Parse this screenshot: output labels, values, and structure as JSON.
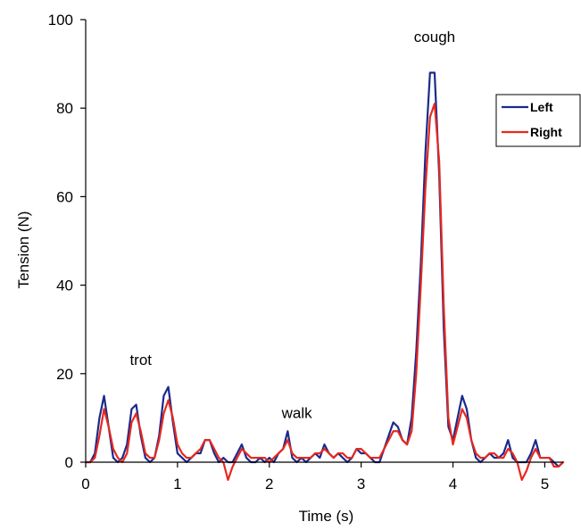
{
  "chart_data": {
    "type": "line",
    "title": "",
    "xlabel": "Time (s)",
    "ylabel": "Tension (N)",
    "xlim": [
      0,
      5.2
    ],
    "ylim": [
      0,
      100
    ],
    "x_ticks": [
      0,
      1,
      2,
      3,
      4,
      5
    ],
    "y_ticks": [
      0,
      20,
      40,
      60,
      80,
      100
    ],
    "grid": false,
    "legend": {
      "placement": "top-right",
      "entries": [
        "Left",
        "Right"
      ]
    },
    "annotations": [
      {
        "text": "trot",
        "x": 0.6,
        "y": 22
      },
      {
        "text": "walk",
        "x": 2.3,
        "y": 10
      },
      {
        "text": "cough",
        "x": 3.8,
        "y": 95
      }
    ],
    "series": [
      {
        "name": "Left",
        "color": "#1a2a8c",
        "x": [
          0,
          0.05,
          0.1,
          0.15,
          0.2,
          0.25,
          0.3,
          0.35,
          0.4,
          0.45,
          0.5,
          0.55,
          0.6,
          0.65,
          0.7,
          0.75,
          0.8,
          0.85,
          0.9,
          0.95,
          1.0,
          1.05,
          1.1,
          1.15,
          1.2,
          1.25,
          1.3,
          1.35,
          1.4,
          1.45,
          1.5,
          1.55,
          1.6,
          1.65,
          1.7,
          1.75,
          1.8,
          1.85,
          1.9,
          1.95,
          2.0,
          2.05,
          2.1,
          2.15,
          2.2,
          2.25,
          2.3,
          2.35,
          2.4,
          2.45,
          2.5,
          2.55,
          2.6,
          2.65,
          2.7,
          2.75,
          2.8,
          2.85,
          2.9,
          2.95,
          3.0,
          3.05,
          3.1,
          3.15,
          3.2,
          3.25,
          3.3,
          3.35,
          3.4,
          3.45,
          3.5,
          3.55,
          3.6,
          3.65,
          3.7,
          3.75,
          3.8,
          3.85,
          3.9,
          3.95,
          4.0,
          4.05,
          4.1,
          4.15,
          4.2,
          4.25,
          4.3,
          4.35,
          4.4,
          4.45,
          4.5,
          4.55,
          4.6,
          4.65,
          4.7,
          4.75,
          4.8,
          4.85,
          4.9,
          4.95,
          5.0,
          5.05,
          5.1,
          5.15,
          5.2
        ],
        "y": [
          0,
          0,
          2,
          10,
          15,
          8,
          1,
          0,
          1,
          4,
          12,
          13,
          6,
          1,
          0,
          1,
          6,
          15,
          17,
          9,
          2,
          1,
          0,
          1,
          2,
          2,
          5,
          5,
          2,
          0,
          1,
          0,
          0,
          2,
          4,
          1,
          0,
          0,
          1,
          0,
          1,
          0,
          2,
          3,
          7,
          1,
          0,
          1,
          0,
          1,
          2,
          1,
          4,
          2,
          1,
          2,
          1,
          0,
          1,
          3,
          2,
          2,
          1,
          0,
          0,
          3,
          6,
          9,
          8,
          5,
          4,
          10,
          25,
          45,
          70,
          88,
          88,
          65,
          30,
          8,
          5,
          10,
          15,
          12,
          5,
          1,
          0,
          1,
          2,
          1,
          1,
          2,
          5,
          1,
          0,
          0,
          0,
          2,
          5,
          1,
          1,
          1,
          0,
          -1,
          0
        ]
      },
      {
        "name": "Right",
        "color": "#e8281e",
        "x": [
          0,
          0.05,
          0.1,
          0.15,
          0.2,
          0.25,
          0.3,
          0.35,
          0.4,
          0.45,
          0.5,
          0.55,
          0.6,
          0.65,
          0.7,
          0.75,
          0.8,
          0.85,
          0.9,
          0.95,
          1.0,
          1.05,
          1.1,
          1.15,
          1.2,
          1.25,
          1.3,
          1.35,
          1.4,
          1.45,
          1.5,
          1.55,
          1.6,
          1.65,
          1.7,
          1.75,
          1.8,
          1.85,
          1.9,
          1.95,
          2.0,
          2.05,
          2.1,
          2.15,
          2.2,
          2.25,
          2.3,
          2.35,
          2.4,
          2.45,
          2.5,
          2.55,
          2.6,
          2.65,
          2.7,
          2.75,
          2.8,
          2.85,
          2.9,
          2.95,
          3.0,
          3.05,
          3.1,
          3.15,
          3.2,
          3.25,
          3.3,
          3.35,
          3.4,
          3.45,
          3.5,
          3.55,
          3.6,
          3.65,
          3.7,
          3.75,
          3.8,
          3.85,
          3.9,
          3.95,
          4.0,
          4.05,
          4.1,
          4.15,
          4.2,
          4.25,
          4.3,
          4.35,
          4.4,
          4.45,
          4.5,
          4.55,
          4.6,
          4.65,
          4.7,
          4.75,
          4.8,
          4.85,
          4.9,
          4.95,
          5.0,
          5.05,
          5.1,
          5.15,
          5.2
        ],
        "y": [
          0,
          0,
          1,
          6,
          12,
          8,
          3,
          1,
          0,
          2,
          9,
          11,
          7,
          2,
          1,
          1,
          5,
          11,
          14,
          10,
          4,
          2,
          1,
          1,
          2,
          3,
          5,
          5,
          3,
          1,
          0,
          -4,
          -1,
          1,
          3,
          2,
          1,
          1,
          1,
          1,
          0,
          1,
          2,
          3,
          5,
          2,
          1,
          1,
          1,
          1,
          2,
          2,
          3,
          2,
          1,
          2,
          2,
          1,
          1,
          3,
          3,
          2,
          1,
          1,
          1,
          3,
          5,
          7,
          7,
          5,
          4,
          7,
          20,
          40,
          62,
          78,
          81,
          68,
          35,
          10,
          4,
          8,
          12,
          10,
          5,
          2,
          1,
          1,
          2,
          2,
          1,
          1,
          3,
          2,
          0,
          -4,
          -2,
          1,
          3,
          1,
          1,
          1,
          -1,
          -1,
          0
        ]
      }
    ]
  }
}
